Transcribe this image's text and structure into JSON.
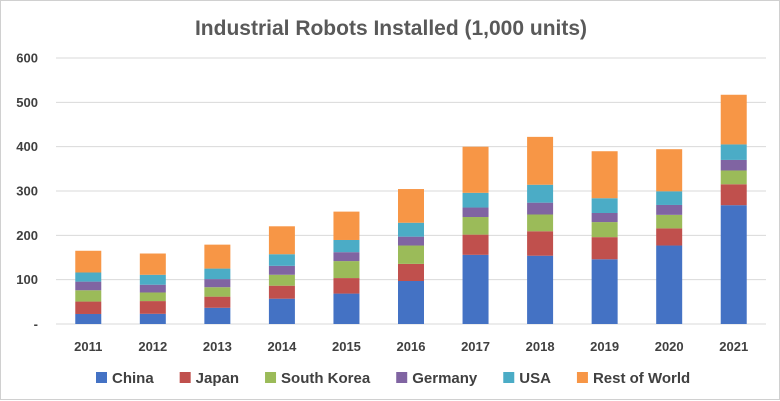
{
  "chart_data": {
    "type": "bar",
    "stacked": true,
    "title": "Industrial Robots Installed (1,000 units)",
    "xlabel": "",
    "ylabel": "",
    "categories": [
      "2011",
      "2012",
      "2013",
      "2014",
      "2015",
      "2016",
      "2017",
      "2018",
      "2019",
      "2020",
      "2021"
    ],
    "ylim": [
      0,
      600
    ],
    "yticks": [
      {
        "value": 0,
        "label": "-"
      },
      {
        "value": 100,
        "label": "100"
      },
      {
        "value": 200,
        "label": "200"
      },
      {
        "value": 300,
        "label": "300"
      },
      {
        "value": 400,
        "label": "400"
      },
      {
        "value": 500,
        "label": "500"
      },
      {
        "value": 600,
        "label": "600"
      }
    ],
    "grid": true,
    "legend_position": "bottom",
    "series": [
      {
        "name": "China",
        "color": "#4472C4",
        "values": [
          22.6,
          23.0,
          36.6,
          57.1,
          68.6,
          97.0,
          156.0,
          154.0,
          146.0,
          177.0,
          268.0
        ]
      },
      {
        "name": "Japan",
        "color": "#C0504D",
        "values": [
          28.0,
          28.7,
          25.1,
          29.3,
          35.0,
          38.6,
          45.6,
          55.2,
          49.9,
          38.7,
          47.2
        ]
      },
      {
        "name": "South Korea",
        "color": "#9BBB59",
        "values": [
          25.5,
          19.4,
          21.3,
          24.7,
          38.3,
          41.4,
          39.7,
          37.8,
          34.0,
          30.5,
          31.1
        ]
      },
      {
        "name": "Germany",
        "color": "#8064A2",
        "values": [
          19.5,
          17.5,
          18.3,
          20.1,
          20.1,
          20.0,
          21.4,
          26.7,
          20.5,
          22.3,
          23.8
        ]
      },
      {
        "name": "USA",
        "color": "#4BACC6",
        "values": [
          20.6,
          22.4,
          23.7,
          26.2,
          27.5,
          31.4,
          33.2,
          40.4,
          33.3,
          30.8,
          35.0
        ]
      },
      {
        "name": "Rest of World",
        "color": "#F79646",
        "values": [
          49.0,
          48.0,
          54.0,
          63.0,
          64.0,
          76.0,
          104.0,
          108.0,
          106.0,
          95.0,
          112.0
        ]
      }
    ]
  }
}
